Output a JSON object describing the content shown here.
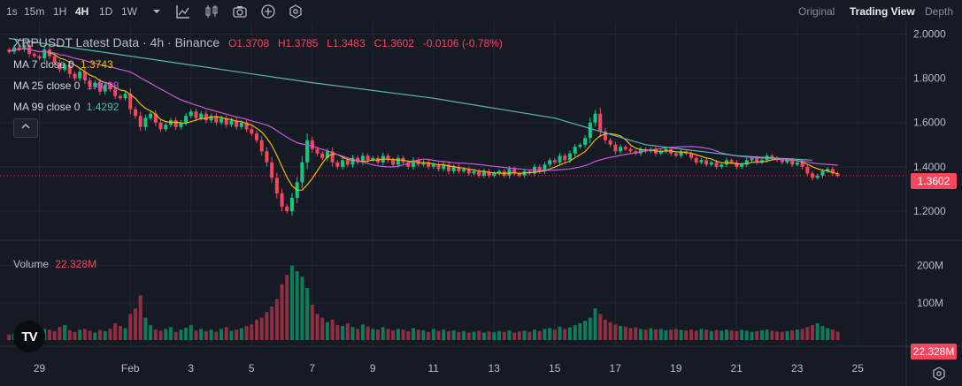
{
  "toolbar": {
    "timeframes": [
      "1s",
      "15m",
      "1H",
      "4H",
      "1D",
      "1W"
    ],
    "active_timeframe": "4H",
    "icons": [
      "chevron-down-icon",
      "indicators-icon",
      "candlestick-type-icon",
      "camera-icon",
      "add-icon",
      "settings-hex-icon"
    ],
    "views": [
      "Original",
      "Trading View",
      "Depth"
    ],
    "active_view": "Trading View"
  },
  "legend": {
    "title": "XRPUSDT Latest Data · 4h · Binance",
    "open": "O1.3708",
    "high": "H1.3785",
    "low": "L1.3483",
    "close": "C1.3602",
    "change": "-0.0106 (-0.78%)",
    "ma7_label": "MA 7 close 0",
    "ma7_value": "1.3743",
    "ma25_label": "MA 25 close 0",
    "ma25_value": "1.4098",
    "ma99_label": "MA 99 close 0",
    "ma99_value": "1.4292",
    "collapse_icon": "chevron-up-icon"
  },
  "volume_legend": {
    "label": "Volume",
    "value": "22.328M"
  },
  "current_price_label": "1.3602",
  "current_volume_label": "22.328M",
  "logo_text": "TV",
  "colors": {
    "up": "#0ecb81",
    "down": "#f6465d",
    "ma7": "#f0b90b",
    "ma25": "#c95ad6",
    "ma99": "#5fb6ad",
    "background": "#161a25"
  },
  "chart_data": {
    "type": "candlestick",
    "title": "XRPUSDT Latest Data · 4h · Binance",
    "price_axis": {
      "range": [
        1.1,
        2.05
      ],
      "ticks": [
        "2.0000",
        "1.8000",
        "1.6000",
        "1.4000",
        "1.2000"
      ],
      "tick_values": [
        2.0,
        1.8,
        1.6,
        1.4,
        1.2
      ]
    },
    "volume_axis": {
      "range": [
        0,
        230
      ],
      "unit": "M",
      "ticks": [
        "200M",
        "100M"
      ],
      "tick_values": [
        200,
        100
      ]
    },
    "x_ticks": [
      "29",
      "Feb",
      "3",
      "5",
      "7",
      "9",
      "11",
      "13",
      "15",
      "17",
      "19",
      "21",
      "23",
      "25"
    ],
    "x_tick_positions_days": [
      -3,
      0,
      2,
      4,
      6,
      8,
      10,
      12,
      14,
      16,
      18,
      20,
      22,
      24
    ],
    "candle_start_day": -4,
    "candle_interval_days": 0.1667,
    "last_close": 1.3602,
    "grid": true,
    "ma_periods": [
      7,
      25,
      99
    ],
    "ma99_approx": [
      [
        -4,
        1.98
      ],
      [
        -2,
        1.94
      ],
      [
        2,
        1.86
      ],
      [
        6,
        1.78
      ],
      [
        10,
        1.71
      ],
      [
        14,
        1.62
      ],
      [
        17,
        1.5
      ],
      [
        20,
        1.45
      ],
      [
        22.5,
        1.43
      ]
    ],
    "closes": [
      1.92,
      1.94,
      1.93,
      1.95,
      1.91,
      1.9,
      1.89,
      1.93,
      1.9,
      1.87,
      1.84,
      1.86,
      1.82,
      1.8,
      1.83,
      1.79,
      1.76,
      1.78,
      1.74,
      1.77,
      1.75,
      1.72,
      1.71,
      1.73,
      1.66,
      1.63,
      1.58,
      1.62,
      1.64,
      1.6,
      1.57,
      1.59,
      1.61,
      1.58,
      1.6,
      1.63,
      1.65,
      1.62,
      1.64,
      1.61,
      1.63,
      1.6,
      1.62,
      1.59,
      1.61,
      1.58,
      1.6,
      1.57,
      1.55,
      1.52,
      1.47,
      1.42,
      1.35,
      1.28,
      1.22,
      1.2,
      1.26,
      1.33,
      1.42,
      1.52,
      1.48,
      1.46,
      1.44,
      1.47,
      1.42,
      1.4,
      1.43,
      1.41,
      1.44,
      1.42,
      1.45,
      1.43,
      1.44,
      1.42,
      1.45,
      1.43,
      1.41,
      1.44,
      1.42,
      1.4,
      1.43,
      1.41,
      1.42,
      1.4,
      1.41,
      1.39,
      1.41,
      1.38,
      1.4,
      1.38,
      1.39,
      1.37,
      1.38,
      1.36,
      1.38,
      1.36,
      1.37,
      1.38,
      1.36,
      1.39,
      1.37,
      1.36,
      1.38,
      1.37,
      1.4,
      1.38,
      1.41,
      1.43,
      1.42,
      1.45,
      1.43,
      1.46,
      1.49,
      1.5,
      1.53,
      1.6,
      1.64,
      1.56,
      1.52,
      1.5,
      1.47,
      1.49,
      1.48,
      1.47,
      1.46,
      1.48,
      1.47,
      1.48,
      1.46,
      1.47,
      1.48,
      1.46,
      1.45,
      1.47,
      1.46,
      1.44,
      1.42,
      1.43,
      1.41,
      1.42,
      1.4,
      1.41,
      1.43,
      1.42,
      1.4,
      1.41,
      1.43,
      1.44,
      1.42,
      1.43,
      1.45,
      1.44,
      1.43,
      1.42,
      1.43,
      1.41,
      1.42,
      1.4,
      1.37,
      1.35,
      1.36,
      1.38,
      1.39,
      1.37,
      1.3602
    ],
    "volumes": [
      15,
      18,
      20,
      22,
      25,
      19,
      16,
      30,
      28,
      24,
      35,
      40,
      26,
      22,
      28,
      30,
      25,
      20,
      27,
      24,
      30,
      45,
      38,
      32,
      70,
      85,
      120,
      60,
      40,
      28,
      25,
      30,
      35,
      22,
      28,
      33,
      40,
      26,
      30,
      24,
      28,
      22,
      30,
      35,
      25,
      28,
      32,
      38,
      42,
      55,
      60,
      75,
      90,
      110,
      150,
      175,
      200,
      185,
      170,
      140,
      95,
      70,
      60,
      48,
      55,
      40,
      38,
      45,
      35,
      30,
      42,
      36,
      30,
      28,
      35,
      30,
      26,
      30,
      28,
      24,
      32,
      28,
      26,
      22,
      30,
      25,
      28,
      24,
      26,
      22,
      24,
      20,
      22,
      25,
      20,
      23,
      21,
      24,
      22,
      26,
      20,
      23,
      25,
      22,
      28,
      24,
      30,
      32,
      28,
      36,
      30,
      34,
      40,
      45,
      52,
      60,
      85,
      70,
      55,
      48,
      42,
      38,
      36,
      32,
      34,
      30,
      28,
      32,
      29,
      30,
      26,
      28,
      30,
      27,
      26,
      28,
      25,
      30,
      28,
      24,
      27,
      25,
      28,
      26,
      24,
      27,
      25,
      22,
      24,
      26,
      28,
      25,
      23,
      22,
      24,
      26,
      28,
      30,
      35,
      40,
      45,
      38,
      32,
      28,
      22.328
    ]
  }
}
